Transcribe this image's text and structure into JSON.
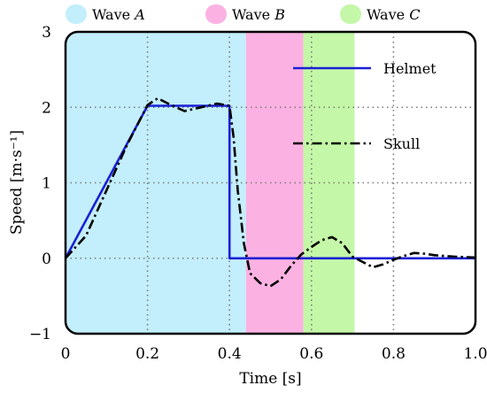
{
  "chart_data": {
    "type": "line",
    "xlabel": "Time [s]",
    "ylabel": "Speed [m·s⁻¹]",
    "xlim": [
      0,
      1.0
    ],
    "ylim": [
      -1,
      3
    ],
    "xticks": [
      "0",
      "0.2",
      "0.4",
      "0.6",
      "0.8",
      "1.0"
    ],
    "yticks": [
      "−1",
      "0",
      "1",
      "2",
      "3"
    ],
    "grid": true,
    "legend_position": "right",
    "bands": [
      {
        "label": "Wave A",
        "prefix": "Wave ",
        "letter": "A",
        "x_start": 0.0,
        "x_end": 0.44,
        "color": "#c3eefb"
      },
      {
        "label": "Wave B",
        "prefix": "Wave ",
        "letter": "B",
        "x_start": 0.44,
        "x_end": 0.58,
        "color": "#fbb2e2"
      },
      {
        "label": "Wave C",
        "prefix": "Wave ",
        "letter": "C",
        "x_start": 0.58,
        "x_end": 0.705,
        "color": "#c4f7a7"
      }
    ],
    "series": [
      {
        "name": "Helmet",
        "style": "solid",
        "color": "#1a20d4",
        "x": [
          0,
          0.2,
          0.4,
          0.4,
          1.0
        ],
        "y": [
          0,
          2.02,
          2.02,
          0,
          0
        ]
      },
      {
        "name": "Skull",
        "style": "dashdot",
        "color": "#000000",
        "x": [
          0,
          0.05,
          0.1,
          0.15,
          0.2,
          0.225,
          0.25,
          0.29,
          0.33,
          0.37,
          0.4,
          0.41,
          0.42,
          0.435,
          0.45,
          0.475,
          0.5,
          0.525,
          0.55,
          0.575,
          0.6,
          0.625,
          0.65,
          0.675,
          0.7,
          0.725,
          0.75,
          0.775,
          0.8,
          0.825,
          0.85,
          0.875,
          0.9,
          0.95,
          1.0
        ],
        "y": [
          0,
          0.3,
          0.9,
          1.5,
          2.03,
          2.12,
          2.05,
          1.95,
          2.0,
          2.05,
          2.02,
          1.6,
          0.9,
          0.2,
          -0.2,
          -0.33,
          -0.37,
          -0.28,
          -0.1,
          0.05,
          0.15,
          0.24,
          0.28,
          0.2,
          0.02,
          -0.05,
          -0.12,
          -0.08,
          -0.02,
          0.03,
          0.07,
          0.06,
          0.04,
          0.02,
          0.01
        ]
      }
    ]
  }
}
